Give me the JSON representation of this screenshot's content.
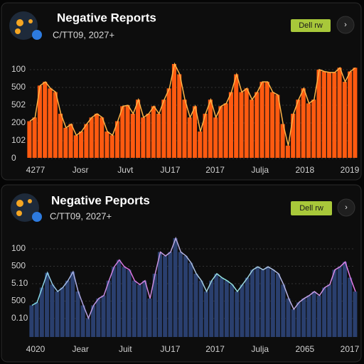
{
  "cards": [
    {
      "title": "Negative Reports",
      "subtitle": "C/TT09, 2027+",
      "button": "Dell rw",
      "chart": {
        "type": "area",
        "color": "#ff5a10",
        "line_color": "#ffb347",
        "ylim": [
          0,
          100
        ],
        "ylabels": [
          "100",
          "500",
          "502",
          "200",
          "102",
          "0"
        ],
        "xlabels": [
          "4277",
          "Josr",
          "Juvt",
          "JU17",
          "2017",
          "Julja",
          "2018",
          "2019"
        ],
        "values": [
          39,
          43,
          77,
          81,
          74,
          70,
          47,
          32,
          36,
          24,
          28,
          36,
          43,
          47,
          43,
          28,
          24,
          39,
          55,
          56,
          47,
          62,
          43,
          47,
          55,
          47,
          62,
          74,
          100,
          89,
          62,
          43,
          55,
          28,
          47,
          62,
          43,
          55,
          58,
          70,
          89,
          70,
          74,
          62,
          70,
          81,
          81,
          70,
          67,
          36,
          13,
          47,
          62,
          74,
          58,
          62,
          94,
          92,
          91,
          91,
          96,
          81,
          92,
          96
        ]
      }
    },
    {
      "title": "Negative Peports",
      "subtitle": "C/TT09, 2027+",
      "button": "Dell rw",
      "chart": {
        "type": "area",
        "color": "#2a3f6e",
        "line_color": "#7fe0e8",
        "ylim": [
          0,
          100
        ],
        "ylabels": [
          "100",
          "500",
          "5.10",
          "500",
          "0.10"
        ],
        "xlabels": [
          "4020",
          "Jear",
          "Juit",
          "JU17",
          "2017",
          "Julja",
          "2065",
          "2017"
        ],
        "values": [
          32,
          35,
          50,
          65,
          53,
          46,
          50,
          57,
          66,
          46,
          32,
          19,
          32,
          39,
          42,
          57,
          71,
          78,
          71,
          68,
          57,
          53,
          57,
          39,
          64,
          86,
          82,
          86,
          100,
          86,
          82,
          75,
          64,
          57,
          46,
          57,
          64,
          60,
          57,
          53,
          46,
          53,
          60,
          68,
          71,
          68,
          71,
          68,
          64,
          53,
          39,
          28,
          35,
          39,
          42,
          46,
          42,
          50,
          53,
          68,
          71,
          76,
          60,
          46
        ]
      }
    }
  ]
}
